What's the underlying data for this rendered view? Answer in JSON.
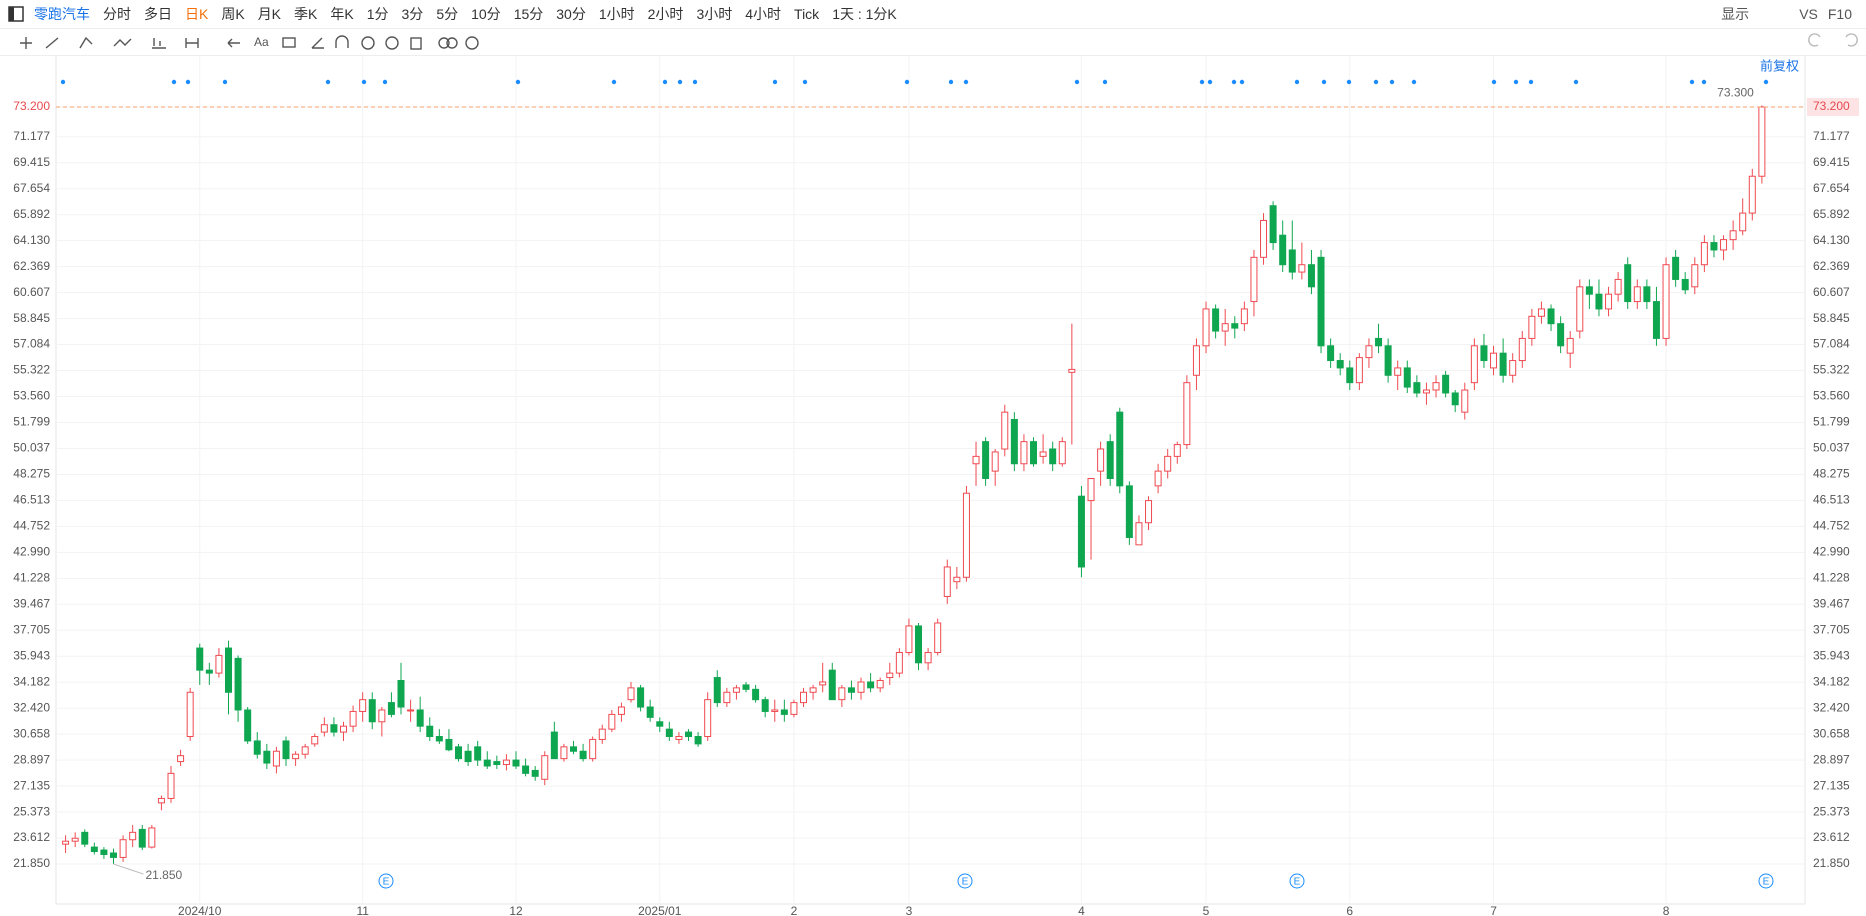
{
  "toolbar": {
    "stock": "零跑汽车",
    "tabs": [
      "分时",
      "多日",
      "日K",
      "周K",
      "月K",
      "季K",
      "年K",
      "1分",
      "3分",
      "5分",
      "10分",
      "15分",
      "30分",
      "1小时",
      "2小时",
      "3小时",
      "4小时",
      "Tick"
    ],
    "active_tab": 2,
    "period": "1天 : 1分K",
    "right": [
      "显示",
      "VS",
      "F10"
    ],
    "text_tool": "Aa"
  },
  "chart_data": {
    "type": "candlestick",
    "adjust_label": "前复权",
    "up_color": "#ef4a50",
    "down_color": "#0fa650",
    "grid": true,
    "low_label": "21.850",
    "high_label": "73.300",
    "values": [
      [
        23.2,
        23.8,
        22.6,
        23.4
      ],
      [
        23.4,
        24.0,
        23.0,
        23.6
      ],
      [
        24.0,
        24.2,
        23.0,
        23.2
      ],
      [
        23.0,
        23.3,
        22.5,
        22.7
      ],
      [
        22.8,
        23.0,
        22.2,
        22.5
      ],
      [
        22.6,
        22.9,
        21.85,
        22.3
      ],
      [
        22.3,
        23.8,
        22.0,
        23.5
      ],
      [
        23.5,
        24.5,
        23.0,
        24.0
      ],
      [
        24.2,
        24.5,
        22.8,
        23.0
      ],
      [
        23.0,
        24.5,
        22.9,
        24.3
      ],
      [
        26.0,
        26.5,
        25.5,
        26.3
      ],
      [
        26.3,
        28.5,
        26.0,
        28.0
      ],
      [
        28.8,
        29.6,
        28.5,
        29.2
      ],
      [
        30.5,
        33.8,
        30.2,
        33.5
      ],
      [
        36.5,
        36.8,
        34.0,
        35.0
      ],
      [
        35.0,
        35.5,
        34.0,
        34.8
      ],
      [
        34.8,
        36.5,
        34.5,
        36.0
      ],
      [
        36.5,
        37.0,
        32.0,
        33.5
      ],
      [
        35.8,
        36.0,
        31.5,
        32.3
      ],
      [
        32.3,
        32.5,
        30.0,
        30.2
      ],
      [
        30.2,
        30.8,
        29.0,
        29.3
      ],
      [
        29.5,
        30.0,
        28.3,
        28.7
      ],
      [
        28.5,
        29.8,
        28.0,
        29.5
      ],
      [
        30.2,
        30.5,
        28.5,
        29.0
      ],
      [
        29.0,
        29.5,
        28.5,
        29.3
      ],
      [
        29.3,
        30.0,
        29.0,
        29.8
      ],
      [
        30.0,
        30.7,
        29.8,
        30.5
      ],
      [
        30.8,
        31.8,
        30.5,
        31.3
      ],
      [
        31.3,
        31.8,
        30.5,
        30.8
      ],
      [
        30.8,
        31.5,
        30.2,
        31.2
      ],
      [
        31.2,
        32.6,
        30.8,
        32.2
      ],
      [
        32.2,
        33.5,
        31.5,
        33.0
      ],
      [
        33.0,
        33.5,
        31.0,
        31.5
      ],
      [
        31.5,
        32.5,
        30.5,
        32.3
      ],
      [
        32.8,
        33.5,
        31.8,
        32.0
      ],
      [
        34.3,
        35.5,
        32.0,
        32.5
      ],
      [
        32.3,
        33.0,
        31.5,
        32.3
      ],
      [
        32.3,
        33.2,
        30.8,
        31.2
      ],
      [
        31.2,
        31.8,
        30.2,
        30.5
      ],
      [
        30.5,
        31.0,
        30.0,
        30.2
      ],
      [
        30.3,
        31.0,
        29.5,
        29.6
      ],
      [
        29.8,
        30.0,
        28.8,
        29.0
      ],
      [
        29.5,
        30.0,
        28.5,
        28.8
      ],
      [
        29.8,
        30.2,
        28.5,
        28.9
      ],
      [
        28.9,
        29.5,
        28.3,
        28.5
      ],
      [
        28.8,
        29.2,
        28.3,
        28.6
      ],
      [
        28.6,
        29.3,
        28.2,
        28.9
      ],
      [
        28.9,
        29.5,
        28.3,
        28.5
      ],
      [
        28.5,
        29.0,
        27.8,
        28.0
      ],
      [
        28.2,
        28.5,
        27.5,
        27.8
      ],
      [
        27.6,
        29.5,
        27.2,
        29.2
      ],
      [
        30.8,
        31.5,
        29.0,
        29.0
      ],
      [
        29.0,
        30.0,
        28.8,
        29.8
      ],
      [
        29.8,
        30.2,
        29.3,
        29.5
      ],
      [
        29.5,
        30.0,
        28.8,
        29.0
      ],
      [
        29.0,
        30.5,
        28.8,
        30.3
      ],
      [
        30.3,
        31.3,
        30.0,
        31.0
      ],
      [
        31.0,
        32.3,
        30.8,
        32.0
      ],
      [
        32.0,
        32.8,
        31.5,
        32.5
      ],
      [
        33.0,
        34.2,
        32.8,
        33.8
      ],
      [
        33.8,
        34.0,
        32.2,
        32.5
      ],
      [
        32.5,
        33.0,
        31.5,
        31.8
      ],
      [
        31.5,
        31.8,
        30.8,
        31.2
      ],
      [
        31.0,
        31.5,
        30.2,
        30.5
      ],
      [
        30.3,
        30.8,
        30.0,
        30.5
      ],
      [
        30.8,
        31.0,
        30.2,
        30.5
      ],
      [
        30.5,
        30.8,
        29.8,
        30.0
      ],
      [
        30.5,
        33.5,
        30.2,
        33.0
      ],
      [
        34.5,
        35.0,
        32.5,
        32.8
      ],
      [
        32.8,
        33.8,
        32.5,
        33.5
      ],
      [
        33.5,
        34.0,
        33.0,
        33.8
      ],
      [
        34.0,
        34.2,
        33.5,
        33.7
      ],
      [
        33.7,
        34.0,
        32.8,
        33.0
      ],
      [
        33.0,
        33.2,
        31.8,
        32.2
      ],
      [
        32.2,
        33.0,
        31.5,
        32.3
      ],
      [
        32.3,
        33.0,
        31.5,
        32.0
      ],
      [
        32.0,
        33.0,
        31.8,
        32.8
      ],
      [
        32.8,
        33.8,
        32.5,
        33.5
      ],
      [
        33.5,
        34.0,
        33.0,
        33.8
      ],
      [
        34.0,
        35.5,
        33.5,
        34.2
      ],
      [
        35.0,
        35.5,
        33.0,
        33.0
      ],
      [
        33.0,
        34.0,
        32.5,
        33.8
      ],
      [
        33.8,
        34.3,
        33.0,
        33.5
      ],
      [
        33.5,
        34.5,
        33.0,
        34.2
      ],
      [
        34.2,
        34.8,
        33.5,
        33.8
      ],
      [
        33.8,
        34.5,
        33.5,
        34.3
      ],
      [
        34.5,
        35.5,
        34.0,
        34.8
      ],
      [
        34.8,
        36.5,
        34.5,
        36.2
      ],
      [
        36.2,
        38.5,
        36.0,
        38.0
      ],
      [
        38.0,
        38.2,
        35.0,
        35.5
      ],
      [
        35.5,
        36.5,
        35.0,
        36.2
      ],
      [
        36.2,
        38.5,
        36.0,
        38.2
      ],
      [
        40.0,
        42.5,
        39.5,
        42.0
      ],
      [
        41.0,
        42.0,
        40.5,
        41.3
      ],
      [
        41.3,
        47.5,
        41.0,
        47.0
      ],
      [
        49.0,
        50.5,
        47.5,
        49.5
      ],
      [
        50.5,
        50.8,
        47.5,
        48.0
      ],
      [
        48.5,
        50.0,
        47.5,
        49.8
      ],
      [
        50.0,
        53.0,
        49.5,
        52.5
      ],
      [
        52.0,
        52.5,
        48.5,
        49.0
      ],
      [
        49.0,
        51.0,
        48.5,
        50.5
      ],
      [
        50.5,
        50.8,
        48.8,
        49.0
      ],
      [
        49.5,
        51.0,
        49.0,
        49.8
      ],
      [
        50.0,
        50.5,
        48.5,
        49.0
      ],
      [
        49.0,
        50.8,
        48.8,
        50.5
      ],
      [
        55.2,
        58.5,
        50.3,
        55.4
      ],
      [
        46.8,
        47.5,
        41.3,
        42.0
      ],
      [
        46.5,
        48.0,
        42.5,
        48.0
      ],
      [
        48.5,
        50.5,
        47.5,
        50.0
      ],
      [
        50.5,
        51.0,
        47.5,
        48.0
      ],
      [
        52.5,
        52.8,
        47.0,
        47.5
      ],
      [
        47.5,
        47.8,
        43.5,
        44.0
      ],
      [
        43.5,
        45.5,
        43.5,
        45.0
      ],
      [
        45.0,
        46.8,
        44.5,
        46.5
      ],
      [
        47.5,
        49.0,
        47.0,
        48.5
      ],
      [
        48.5,
        50.0,
        48.0,
        49.5
      ],
      [
        49.5,
        50.5,
        49.0,
        50.3
      ],
      [
        50.3,
        55.0,
        50.0,
        54.5
      ],
      [
        55.0,
        57.5,
        54.0,
        57.0
      ],
      [
        57.0,
        60.0,
        56.5,
        59.5
      ],
      [
        59.5,
        59.8,
        57.5,
        58.0
      ],
      [
        58.0,
        59.5,
        57.0,
        58.5
      ],
      [
        58.5,
        59.0,
        57.5,
        58.2
      ],
      [
        58.5,
        60.0,
        58.0,
        59.5
      ],
      [
        60.0,
        63.5,
        59.0,
        63.0
      ],
      [
        63.0,
        66.0,
        62.5,
        65.5
      ],
      [
        66.5,
        66.8,
        63.5,
        64.0
      ],
      [
        64.5,
        65.5,
        62.0,
        62.5
      ],
      [
        63.5,
        65.5,
        61.5,
        62.0
      ],
      [
        62.0,
        64.0,
        61.5,
        62.5
      ],
      [
        62.5,
        63.5,
        60.5,
        61.0
      ],
      [
        63.0,
        63.5,
        56.5,
        57.0
      ],
      [
        57.0,
        57.5,
        55.5,
        56.0
      ],
      [
        56.0,
        56.5,
        55.0,
        55.5
      ],
      [
        55.5,
        56.0,
        54.0,
        54.5
      ],
      [
        54.5,
        56.5,
        54.0,
        56.2
      ],
      [
        56.2,
        57.5,
        55.5,
        57.0
      ],
      [
        57.5,
        58.5,
        56.5,
        57.0
      ],
      [
        57.0,
        57.5,
        54.5,
        55.0
      ],
      [
        55.0,
        56.0,
        54.0,
        55.5
      ],
      [
        55.5,
        56.0,
        53.8,
        54.2
      ],
      [
        54.5,
        55.0,
        53.5,
        53.8
      ],
      [
        53.8,
        54.5,
        53.0,
        54.0
      ],
      [
        54.0,
        55.0,
        53.5,
        54.5
      ],
      [
        55.0,
        55.3,
        53.5,
        53.8
      ],
      [
        53.8,
        54.0,
        52.5,
        53.0
      ],
      [
        52.5,
        54.5,
        52.0,
        54.0
      ],
      [
        54.5,
        57.5,
        54.0,
        57.0
      ],
      [
        57.0,
        57.8,
        55.5,
        56.0
      ],
      [
        55.5,
        57.0,
        55.0,
        56.5
      ],
      [
        56.5,
        57.5,
        54.5,
        55.0
      ],
      [
        55.0,
        56.5,
        54.5,
        56.0
      ],
      [
        56.0,
        58.0,
        55.5,
        57.5
      ],
      [
        57.5,
        59.5,
        57.0,
        59.0
      ],
      [
        59.0,
        60.0,
        58.5,
        59.5
      ],
      [
        59.5,
        59.8,
        58.0,
        58.5
      ],
      [
        58.5,
        59.0,
        56.5,
        57.0
      ],
      [
        56.5,
        58.0,
        55.5,
        57.5
      ],
      [
        58.0,
        61.5,
        57.5,
        61.0
      ],
      [
        61.0,
        61.5,
        59.5,
        60.5
      ],
      [
        60.5,
        61.5,
        59.0,
        59.5
      ],
      [
        59.5,
        61.0,
        59.0,
        60.5
      ],
      [
        60.5,
        62.0,
        60.0,
        61.5
      ],
      [
        62.5,
        63.0,
        59.5,
        60.0
      ],
      [
        60.0,
        61.5,
        59.5,
        61.0
      ],
      [
        61.0,
        61.5,
        59.5,
        60.0
      ],
      [
        60.0,
        61.0,
        57.0,
        57.5
      ],
      [
        57.5,
        63.0,
        57.0,
        62.5
      ],
      [
        63.0,
        63.5,
        61.0,
        61.5
      ],
      [
        61.5,
        62.0,
        60.5,
        60.8
      ],
      [
        61.0,
        63.0,
        60.5,
        62.5
      ],
      [
        62.5,
        64.5,
        62.0,
        64.0
      ],
      [
        64.0,
        64.5,
        63.0,
        63.5
      ],
      [
        63.5,
        64.5,
        62.8,
        64.2
      ],
      [
        64.2,
        65.5,
        63.5,
        64.8
      ],
      [
        64.8,
        67.0,
        64.5,
        66.0
      ],
      [
        66.0,
        69.0,
        65.5,
        68.5
      ],
      [
        68.5,
        73.3,
        68.0,
        73.2
      ]
    ],
    "xlim": [
      -1,
      181.5
    ],
    "xticks": [
      {
        "value": 14,
        "label": "2024/10"
      },
      {
        "value": 31,
        "label": "11"
      },
      {
        "value": 47,
        "label": "12"
      },
      {
        "value": 62,
        "label": "2025/01"
      },
      {
        "value": 76,
        "label": "2"
      },
      {
        "value": 88,
        "label": "3"
      },
      {
        "value": 106,
        "label": "4"
      },
      {
        "value": 119,
        "label": "5"
      },
      {
        "value": 134,
        "label": "6"
      },
      {
        "value": 149,
        "label": "7"
      },
      {
        "value": 167,
        "label": "8"
      }
    ],
    "ylim": [
      20.09,
      74.01
    ],
    "yticks": [
      {
        "value": 21.85,
        "label": "21.850"
      },
      23.612,
      25.373,
      27.135,
      28.897,
      30.658,
      {
        "value": 32.42,
        "label": "32.420"
      },
      34.182,
      35.943,
      37.705,
      39.467,
      41.228,
      {
        "value": 42.99,
        "label": "42.990"
      },
      44.752,
      46.513,
      48.275,
      50.037,
      51.799,
      {
        "value": 53.56,
        "label": "53.560"
      },
      55.322,
      57.084,
      58.845,
      60.607,
      62.369,
      {
        "value": 64.13,
        "label": "64.130"
      },
      65.892,
      67.654,
      69.415,
      71.177,
      {
        "value": 73.2,
        "label": "73.200"
      }
    ]
  }
}
